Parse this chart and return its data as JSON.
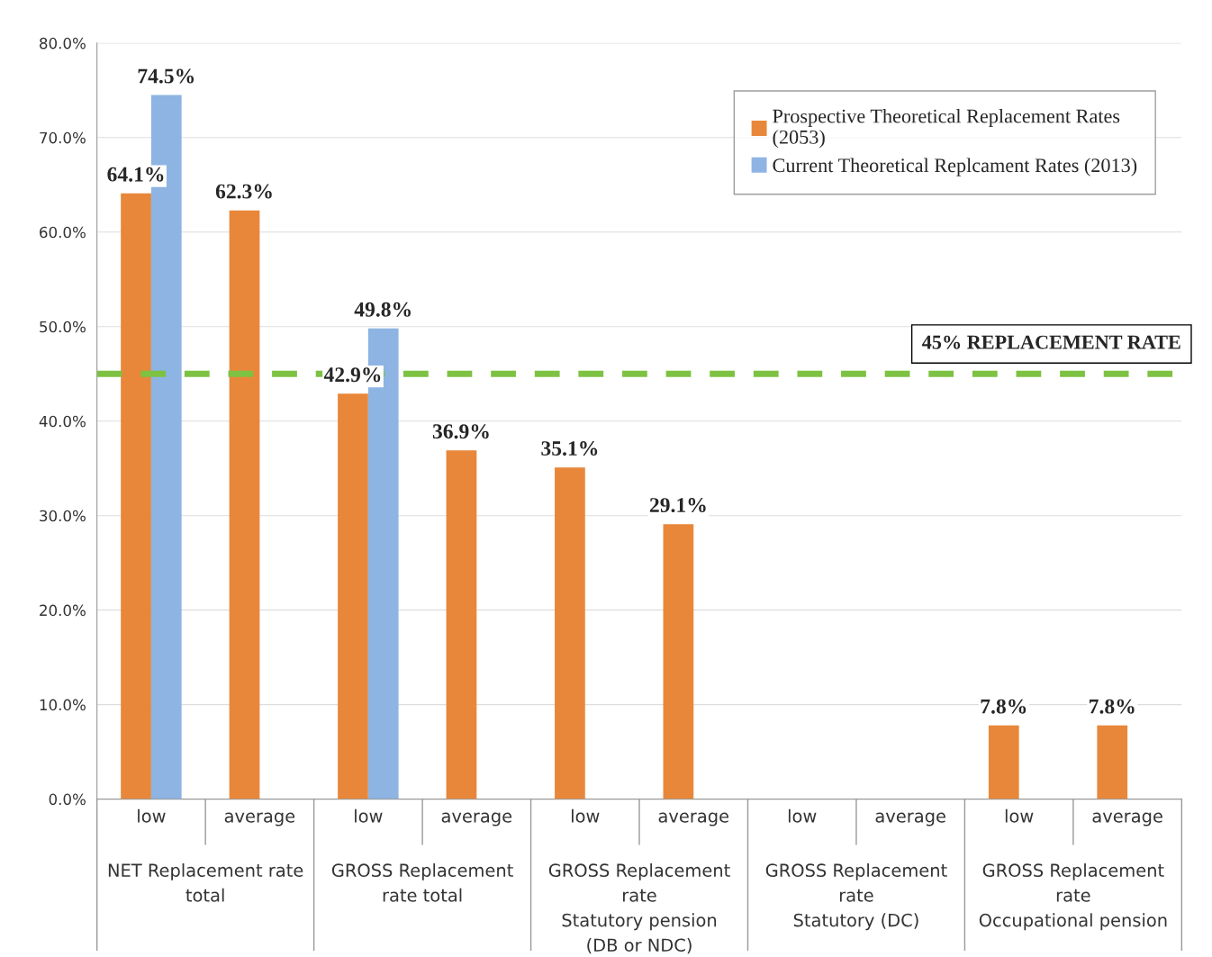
{
  "chart_data": {
    "type": "bar",
    "categories": [
      "low",
      "average",
      "low",
      "average",
      "low",
      "average",
      "low",
      "average",
      "low",
      "average"
    ],
    "series": [
      {
        "name": "Prospective Theoretical Replacement Rates\n(2053)",
        "color": "#e8873a",
        "values": [
          64.1,
          62.3,
          42.9,
          36.9,
          35.1,
          29.1,
          null,
          null,
          7.8,
          7.8
        ],
        "value_labels": [
          "64.1%",
          "62.3%",
          "42.9%",
          "36.9%",
          "35.1%",
          "29.1%",
          null,
          null,
          "7.8%",
          "7.8%"
        ]
      },
      {
        "name": "Current Theoretical Replcament Rates (2013)",
        "color": "#8db4e2",
        "values": [
          74.5,
          null,
          49.8,
          null,
          null,
          null,
          null,
          null,
          null,
          null
        ],
        "value_labels": [
          "74.5%",
          null,
          "49.8%",
          null,
          null,
          null,
          null,
          null,
          null,
          null
        ]
      }
    ],
    "annotations": [
      "NET Replacement rate\ntotal",
      "GROSS Replacement\nrate total",
      "GROSS Replacement\nrate\nStatutory pension\n(DB or NDC)",
      "GROSS Replacement\nrate\nStatutory (DC)",
      "GROSS Replacement\nrate\nOccupational pension"
    ],
    "ylim": [
      0,
      80
    ],
    "yticks": [
      {
        "value": 0,
        "label": "0.0%"
      },
      {
        "value": 10,
        "label": "10.0%"
      },
      {
        "value": 20,
        "label": "20.0%"
      },
      {
        "value": 30,
        "label": "30.0%"
      },
      {
        "value": 40,
        "label": "40.0%"
      },
      {
        "value": 50,
        "label": "50.0%"
      },
      {
        "value": 60,
        "label": "60.0%"
      },
      {
        "value": 70,
        "label": "70.0%"
      },
      {
        "value": 80,
        "label": "80.0%"
      }
    ],
    "ref_lines": [
      {
        "axis": "y",
        "value": 45,
        "label": "45% REPLACEMENT RATE",
        "color": "#7dc242",
        "line_style": "dashed"
      }
    ],
    "grid": "y",
    "legend": "top right"
  }
}
